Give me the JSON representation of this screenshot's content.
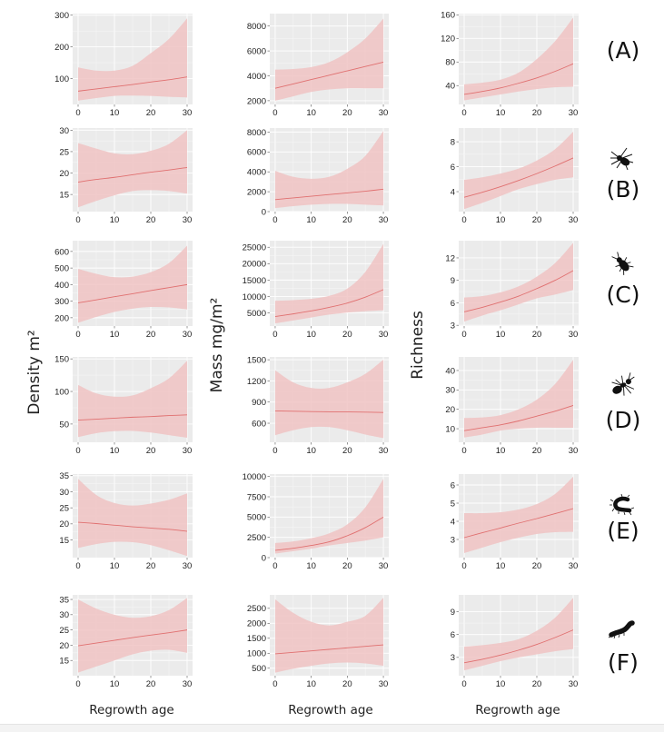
{
  "figure": {
    "ylabels": [
      "Density m²",
      "Mass mg/m²",
      "Richness"
    ],
    "xlabel": "Regrowth age",
    "panel_labels": [
      "(A)",
      "(B)",
      "(C)",
      "(D)",
      "(E)",
      "(F)"
    ],
    "panel_icons": [
      "",
      "spider-icon",
      "beetle-icon",
      "ant-icon",
      "centipede-icon",
      "millipede-icon"
    ],
    "colors": {
      "panel_bg": "#ebebeb",
      "ribbon": "#f0c3c3",
      "line": "#e07070",
      "grid": "#f7f7f7"
    }
  },
  "chart_data": [
    {
      "type": "line",
      "row": "A",
      "metric": "Density",
      "x": [
        0,
        5,
        10,
        15,
        20,
        25,
        30
      ],
      "fit": [
        60,
        67,
        74,
        81,
        89,
        96,
        105
      ],
      "lower": [
        30,
        38,
        45,
        46,
        45,
        42,
        40
      ],
      "upper": [
        135,
        125,
        125,
        140,
        180,
        225,
        290
      ],
      "xticks": [
        0,
        10,
        20,
        30
      ],
      "yticks": [
        100,
        200,
        300
      ],
      "ylim": [
        18,
        305
      ],
      "xlim": [
        -1.5,
        31.5
      ]
    },
    {
      "type": "line",
      "row": "A",
      "metric": "Mass",
      "x": [
        0,
        5,
        10,
        15,
        20,
        25,
        30
      ],
      "fit": [
        3000,
        3350,
        3700,
        4050,
        4400,
        4750,
        5100
      ],
      "lower": [
        2000,
        2350,
        2700,
        2900,
        3000,
        3000,
        3000
      ],
      "upper": [
        4500,
        4550,
        4700,
        5100,
        5900,
        7000,
        8600
      ],
      "xticks": [
        0,
        10,
        20,
        30
      ],
      "yticks": [
        2000,
        4000,
        6000,
        8000
      ],
      "ylim": [
        1700,
        9000
      ],
      "xlim": [
        -1.5,
        31.5
      ]
    },
    {
      "type": "line",
      "row": "A",
      "metric": "Richness",
      "x": [
        0,
        5,
        10,
        15,
        20,
        25,
        30
      ],
      "fit": [
        25,
        30,
        36,
        44,
        53,
        64,
        77
      ],
      "lower": [
        15,
        20,
        25,
        30,
        34,
        37,
        38
      ],
      "upper": [
        42,
        45,
        50,
        62,
        85,
        115,
        155
      ],
      "xticks": [
        0,
        10,
        20,
        30
      ],
      "yticks": [
        40,
        80,
        120,
        160
      ],
      "ylim": [
        8,
        162
      ],
      "xlim": [
        -1.5,
        31.5
      ]
    },
    {
      "type": "line",
      "row": "B",
      "metric": "Density",
      "x": [
        0,
        5,
        10,
        15,
        20,
        25,
        30
      ],
      "fit": [
        17.9,
        18.5,
        19,
        19.6,
        20.2,
        20.7,
        21.3
      ],
      "lower": [
        12,
        13.5,
        14.8,
        15.8,
        16,
        15.8,
        15.2
      ],
      "upper": [
        27,
        25.7,
        24.6,
        24.4,
        25.2,
        26.8,
        30
      ],
      "xticks": [
        0,
        10,
        20,
        30
      ],
      "yticks": [
        15,
        20,
        25,
        30
      ],
      "ylim": [
        11,
        30.5
      ],
      "xlim": [
        -1.5,
        31.5
      ]
    },
    {
      "type": "line",
      "row": "B",
      "metric": "Mass",
      "x": [
        0,
        5,
        10,
        15,
        20,
        25,
        30
      ],
      "fit": [
        1200,
        1380,
        1550,
        1720,
        1880,
        2050,
        2250
      ],
      "lower": [
        350,
        550,
        700,
        780,
        780,
        700,
        620
      ],
      "upper": [
        4100,
        3500,
        3300,
        3500,
        4300,
        5600,
        8100
      ],
      "xticks": [
        0,
        10,
        20,
        30
      ],
      "yticks": [
        0,
        2000,
        4000,
        6000,
        8000
      ],
      "ylim": [
        0,
        8400
      ],
      "xlim": [
        -1.5,
        31.5
      ]
    },
    {
      "type": "line",
      "row": "B",
      "metric": "Richness",
      "x": [
        0,
        5,
        10,
        15,
        20,
        25,
        30
      ],
      "fit": [
        3.55,
        3.95,
        4.4,
        4.9,
        5.45,
        6.05,
        6.7
      ],
      "lower": [
        2.6,
        3.1,
        3.65,
        4.2,
        4.6,
        4.95,
        5.15
      ],
      "upper": [
        4.95,
        5.15,
        5.45,
        5.85,
        6.5,
        7.4,
        8.8
      ],
      "xticks": [
        0,
        10,
        20,
        30
      ],
      "yticks": [
        4,
        6,
        8
      ],
      "ylim": [
        2.4,
        9.1
      ],
      "xlim": [
        -1.5,
        31.5
      ]
    },
    {
      "type": "line",
      "row": "C",
      "metric": "Density",
      "x": [
        0,
        5,
        10,
        15,
        20,
        25,
        30
      ],
      "fit": [
        290,
        308,
        327,
        345,
        364,
        382,
        400
      ],
      "lower": [
        170,
        205,
        235,
        255,
        265,
        262,
        250
      ],
      "upper": [
        495,
        465,
        445,
        448,
        475,
        530,
        635
      ],
      "xticks": [
        0,
        10,
        20,
        30
      ],
      "yticks": [
        200,
        300,
        400,
        500,
        600
      ],
      "ylim": [
        150,
        665
      ],
      "xlim": [
        -1.5,
        31.5
      ]
    },
    {
      "type": "line",
      "row": "C",
      "metric": "Mass",
      "x": [
        0,
        5,
        10,
        15,
        20,
        25,
        30
      ],
      "fit": [
        3900,
        4700,
        5600,
        6700,
        8000,
        9800,
        12100
      ],
      "lower": [
        1800,
        2700,
        3600,
        4500,
        5100,
        5500,
        5800
      ],
      "upper": [
        8700,
        8900,
        9300,
        10200,
        12400,
        17500,
        26000
      ],
      "xticks": [
        0,
        10,
        20,
        30
      ],
      "yticks": [
        5000,
        10000,
        15000,
        20000,
        25000
      ],
      "ylim": [
        1000,
        27000
      ],
      "xlim": [
        -1.5,
        31.5
      ]
    },
    {
      "type": "line",
      "row": "C",
      "metric": "Richness",
      "x": [
        0,
        5,
        10,
        15,
        20,
        25,
        30
      ],
      "fit": [
        4.8,
        5.4,
        6.1,
        6.9,
        7.9,
        9.0,
        10.3
      ],
      "lower": [
        3.5,
        4.3,
        5.0,
        5.8,
        6.6,
        7.1,
        7.7
      ],
      "upper": [
        6.7,
        6.9,
        7.4,
        8.2,
        9.5,
        11.3,
        14.0
      ],
      "xticks": [
        0,
        10,
        20,
        30
      ],
      "yticks": [
        3,
        6,
        9,
        12
      ],
      "ylim": [
        2.9,
        14.3
      ],
      "xlim": [
        -1.5,
        31.5
      ]
    },
    {
      "type": "line",
      "row": "D",
      "metric": "Density",
      "x": [
        0,
        5,
        10,
        15,
        20,
        25,
        30
      ],
      "fit": [
        56,
        57.5,
        59,
        60.5,
        61.5,
        63,
        64
      ],
      "lower": [
        30,
        36,
        39,
        39.5,
        37,
        33,
        29
      ],
      "upper": [
        110,
        97,
        92,
        94,
        105,
        120,
        147
      ],
      "xticks": [
        0,
        10,
        20,
        30
      ],
      "yticks": [
        50,
        100,
        150
      ],
      "ylim": [
        22,
        153
      ],
      "xlim": [
        -1.5,
        31.5
      ]
    },
    {
      "type": "line",
      "row": "D",
      "metric": "Mass",
      "x": [
        0,
        5,
        10,
        15,
        20,
        25,
        30
      ],
      "fit": [
        775,
        770,
        765,
        762,
        760,
        757,
        752
      ],
      "lower": [
        430,
        500,
        545,
        545,
        500,
        440,
        390
      ],
      "upper": [
        1350,
        1180,
        1100,
        1100,
        1180,
        1300,
        1500
      ],
      "xticks": [
        0,
        10,
        20,
        30
      ],
      "yticks": [
        600,
        900,
        1200,
        1500
      ],
      "ylim": [
        330,
        1540
      ],
      "xlim": [
        -1.5,
        31.5
      ]
    },
    {
      "type": "line",
      "row": "D",
      "metric": "Richness",
      "x": [
        0,
        5,
        10,
        15,
        20,
        25,
        30
      ],
      "fit": [
        9,
        10.5,
        12,
        14,
        16.5,
        19,
        22
      ],
      "lower": [
        5.5,
        7,
        9,
        10,
        10.5,
        10.5,
        10.5
      ],
      "upper": [
        15.5,
        15.8,
        17,
        20,
        25,
        33,
        45.5
      ],
      "xticks": [
        0,
        10,
        20,
        30
      ],
      "yticks": [
        10,
        20,
        30,
        40
      ],
      "ylim": [
        3,
        47
      ],
      "xlim": [
        -1.5,
        31.5
      ]
    },
    {
      "type": "line",
      "row": "E",
      "metric": "Density",
      "x": [
        0,
        5,
        10,
        15,
        20,
        25,
        30
      ],
      "fit": [
        20.5,
        20.1,
        19.6,
        19.1,
        18.7,
        18.3,
        17.7
      ],
      "lower": [
        12.5,
        13.7,
        14.4,
        14.3,
        13.4,
        11.8,
        10
      ],
      "upper": [
        34,
        29,
        26.5,
        25.7,
        26.3,
        27.5,
        29.5
      ],
      "xticks": [
        0,
        10,
        20,
        30
      ],
      "yticks": [
        15,
        20,
        25,
        30,
        35
      ],
      "ylim": [
        9.5,
        35.5
      ],
      "xlim": [
        -1.5,
        31.5
      ]
    },
    {
      "type": "line",
      "row": "E",
      "metric": "Mass",
      "x": [
        0,
        5,
        10,
        15,
        20,
        25,
        30
      ],
      "fit": [
        900,
        1150,
        1500,
        1950,
        2700,
        3700,
        5000
      ],
      "lower": [
        500,
        800,
        1100,
        1500,
        1800,
        2100,
        2500
      ],
      "upper": [
        1800,
        2000,
        2400,
        3000,
        4100,
        6200,
        9700
      ],
      "xticks": [
        0,
        10,
        20,
        30
      ],
      "yticks": [
        0,
        2500,
        5000,
        7500,
        10000
      ],
      "ylim": [
        0,
        10300
      ],
      "xlim": [
        -1.5,
        31.5
      ]
    },
    {
      "type": "line",
      "row": "E",
      "metric": "Richness",
      "x": [
        0,
        5,
        10,
        15,
        20,
        25,
        30
      ],
      "fit": [
        3.1,
        3.37,
        3.63,
        3.9,
        4.15,
        4.42,
        4.7
      ],
      "lower": [
        2.25,
        2.55,
        2.85,
        3.1,
        3.3,
        3.4,
        3.42
      ],
      "upper": [
        4.45,
        4.45,
        4.5,
        4.65,
        4.95,
        5.5,
        6.45
      ],
      "xticks": [
        0,
        10,
        20,
        30
      ],
      "yticks": [
        3,
        4,
        5,
        6
      ],
      "ylim": [
        2.0,
        6.6
      ],
      "xlim": [
        -1.5,
        31.5
      ]
    },
    {
      "type": "line",
      "row": "F",
      "metric": "Density",
      "x": [
        0,
        5,
        10,
        15,
        20,
        25,
        30
      ],
      "fit": [
        19.8,
        20.7,
        21.6,
        22.5,
        23.3,
        24.1,
        25
      ],
      "lower": [
        11,
        13,
        15,
        17,
        18.2,
        18.5,
        17.5
      ],
      "upper": [
        35,
        32,
        30,
        29,
        29.5,
        31.5,
        35.5
      ],
      "xticks": [
        0,
        10,
        20,
        30
      ],
      "yticks": [
        15,
        20,
        25,
        30,
        35
      ],
      "ylim": [
        10,
        36.5
      ],
      "xlim": [
        -1.5,
        31.5
      ]
    },
    {
      "type": "line",
      "row": "F",
      "metric": "Mass",
      "x": [
        0,
        5,
        10,
        15,
        20,
        25,
        30
      ],
      "fit": [
        980,
        1030,
        1080,
        1130,
        1180,
        1230,
        1280
      ],
      "lower": [
        350,
        480,
        580,
        660,
        690,
        660,
        580
      ],
      "upper": [
        2800,
        2350,
        2050,
        1930,
        2050,
        2250,
        2850
      ],
      "xticks": [
        0,
        10,
        20,
        30
      ],
      "yticks": [
        500,
        1000,
        1500,
        2000,
        2500
      ],
      "ylim": [
        250,
        2950
      ],
      "xlim": [
        -1.5,
        31.5
      ]
    },
    {
      "type": "line",
      "row": "F",
      "metric": "Richness",
      "x": [
        0,
        5,
        10,
        15,
        20,
        25,
        30
      ],
      "fit": [
        2.3,
        2.75,
        3.3,
        3.95,
        4.7,
        5.6,
        6.6
      ],
      "lower": [
        1.3,
        1.9,
        2.5,
        3.0,
        3.4,
        3.8,
        4.1
      ],
      "upper": [
        4.4,
        4.6,
        4.9,
        5.4,
        6.5,
        8.2,
        10.8
      ],
      "xticks": [
        0,
        10,
        20,
        30
      ],
      "yticks": [
        3,
        6,
        9
      ],
      "ylim": [
        0.6,
        11.2
      ],
      "xlim": [
        -1.5,
        31.5
      ]
    }
  ]
}
